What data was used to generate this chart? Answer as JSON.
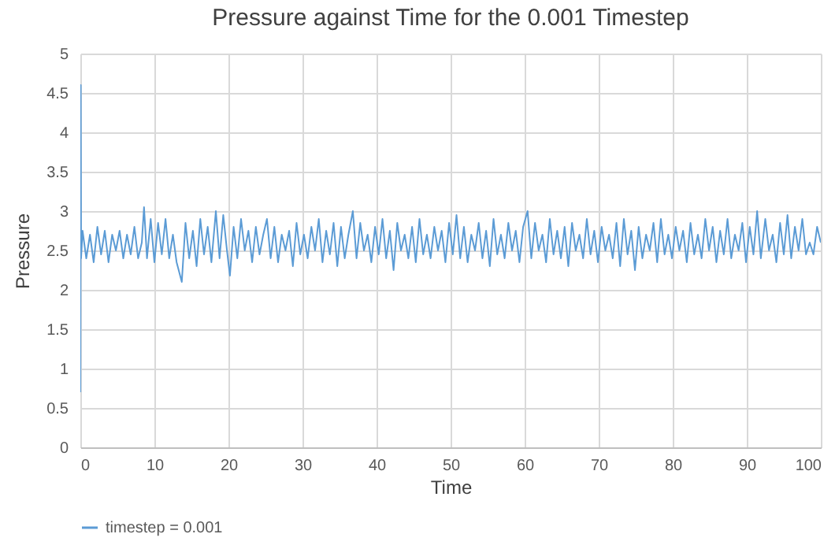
{
  "chart_data": {
    "type": "line",
    "title": "Pressure against Time for the 0.001 Timestep",
    "xlabel": "Time",
    "ylabel": "Pressure",
    "x": [
      0,
      0.05,
      0.1,
      0.3,
      0.8,
      1.3,
      1.8,
      2.3,
      2.8,
      3.3,
      3.8,
      4.3,
      4.8,
      5.3,
      5.8,
      6.3,
      6.8,
      7.3,
      7.8,
      8.3,
      8.6,
      9.0,
      9.5,
      10,
      10.5,
      11,
      11.5,
      12,
      12.5,
      13,
      13.7,
      14.2,
      14.7,
      15.2,
      15.7,
      16.2,
      16.7,
      17.2,
      17.7,
      18.3,
      18.8,
      19.3,
      19.8,
      20.2,
      20.7,
      21.2,
      21.7,
      22.2,
      22.7,
      23.2,
      23.7,
      24.2,
      24.7,
      25.2,
      25.7,
      26.2,
      26.7,
      27.2,
      27.7,
      28.2,
      28.7,
      29.2,
      29.7,
      30.2,
      30.7,
      31.2,
      31.7,
      32.2,
      32.7,
      33.2,
      33.7,
      34.2,
      34.7,
      35.2,
      35.7,
      36.2,
      36.8,
      37.3,
      37.8,
      38.3,
      38.8,
      39.3,
      39.8,
      40.3,
      40.8,
      41.3,
      41.8,
      42.3,
      42.8,
      43.3,
      43.8,
      44.3,
      44.8,
      45.3,
      45.8,
      46.3,
      46.8,
      47.3,
      47.8,
      48.3,
      48.8,
      49.3,
      49.8,
      50.3,
      50.8,
      51.3,
      51.8,
      52.3,
      52.8,
      53.3,
      53.8,
      54.3,
      54.8,
      55.3,
      55.8,
      56.3,
      56.8,
      57.3,
      57.8,
      58.3,
      58.8,
      59.3,
      59.8,
      60.4,
      60.9,
      61.4,
      61.9,
      62.4,
      62.9,
      63.4,
      63.9,
      64.4,
      64.9,
      65.4,
      65.9,
      66.4,
      66.9,
      67.4,
      67.9,
      68.4,
      68.9,
      69.4,
      69.9,
      70.4,
      70.9,
      71.4,
      71.9,
      72.4,
      72.9,
      73.4,
      73.9,
      74.4,
      74.9,
      75.4,
      75.9,
      76.4,
      76.9,
      77.4,
      77.9,
      78.4,
      78.9,
      79.4,
      79.9,
      80.4,
      80.9,
      81.4,
      81.9,
      82.4,
      82.9,
      83.4,
      83.9,
      84.4,
      84.9,
      85.4,
      85.9,
      86.4,
      86.9,
      87.4,
      87.9,
      88.4,
      88.9,
      89.4,
      89.9,
      90.4,
      90.9,
      91.4,
      91.9,
      92.5,
      93.0,
      93.5,
      94.0,
      94.5,
      95.0,
      95.5,
      96.0,
      96.5,
      97.0,
      97.5,
      98.0,
      98.5,
      99.0,
      99.5,
      100
    ],
    "series": [
      {
        "name": "timestep = 0.001",
        "color": "#5b9bd5",
        "values": [
          0.7,
          4.6,
          2.4,
          2.75,
          2.4,
          2.7,
          2.35,
          2.8,
          2.45,
          2.75,
          2.35,
          2.7,
          2.5,
          2.75,
          2.4,
          2.7,
          2.45,
          2.8,
          2.4,
          2.6,
          3.05,
          2.4,
          2.9,
          2.35,
          2.85,
          2.45,
          2.9,
          2.4,
          2.7,
          2.35,
          2.1,
          2.85,
          2.4,
          2.75,
          2.3,
          2.9,
          2.45,
          2.8,
          2.35,
          3.0,
          2.4,
          2.95,
          2.5,
          2.18,
          2.8,
          2.4,
          2.9,
          2.5,
          2.75,
          2.35,
          2.8,
          2.45,
          2.7,
          2.9,
          2.4,
          2.8,
          2.35,
          2.7,
          2.5,
          2.75,
          2.3,
          2.85,
          2.45,
          2.7,
          2.4,
          2.8,
          2.5,
          2.9,
          2.35,
          2.75,
          2.45,
          2.85,
          2.3,
          2.8,
          2.4,
          2.7,
          3.0,
          2.4,
          2.85,
          2.5,
          2.7,
          2.35,
          2.8,
          2.45,
          2.9,
          2.4,
          2.75,
          2.25,
          2.85,
          2.5,
          2.7,
          2.4,
          2.8,
          2.35,
          2.9,
          2.45,
          2.7,
          2.4,
          2.8,
          2.5,
          2.75,
          2.35,
          2.85,
          2.45,
          2.95,
          2.4,
          2.8,
          2.35,
          2.7,
          2.5,
          2.85,
          2.4,
          2.75,
          2.3,
          2.9,
          2.45,
          2.7,
          2.4,
          2.85,
          2.5,
          2.75,
          2.35,
          2.8,
          3.0,
          2.4,
          2.85,
          2.5,
          2.7,
          2.35,
          2.9,
          2.45,
          2.75,
          2.4,
          2.8,
          2.3,
          2.85,
          2.5,
          2.7,
          2.4,
          2.9,
          2.45,
          2.75,
          2.35,
          2.8,
          2.5,
          2.7,
          2.4,
          2.85,
          2.3,
          2.9,
          2.45,
          2.75,
          2.25,
          2.8,
          2.4,
          2.7,
          2.5,
          2.85,
          2.35,
          2.9,
          2.45,
          2.7,
          2.4,
          2.8,
          2.5,
          2.75,
          2.35,
          2.85,
          2.45,
          2.7,
          2.4,
          2.9,
          2.5,
          2.8,
          2.35,
          2.75,
          2.45,
          2.9,
          2.4,
          2.7,
          2.5,
          2.85,
          2.35,
          2.8,
          2.45,
          3.0,
          2.4,
          2.9,
          2.5,
          2.7,
          2.35,
          2.85,
          2.45,
          2.95,
          2.4,
          2.8,
          2.5,
          2.9,
          2.45,
          2.6,
          2.45,
          2.8,
          2.6
        ]
      }
    ],
    "xlim": [
      0,
      100
    ],
    "xticks": [
      0,
      10,
      20,
      30,
      40,
      50,
      60,
      70,
      80,
      90,
      100
    ],
    "ylim": [
      0,
      5
    ],
    "yticks": [
      0,
      0.5,
      1,
      1.5,
      2,
      2.5,
      3,
      3.5,
      4,
      4.5,
      5
    ],
    "grid": true,
    "legend": "bottom",
    "marker": "none",
    "line_style": "solid"
  }
}
